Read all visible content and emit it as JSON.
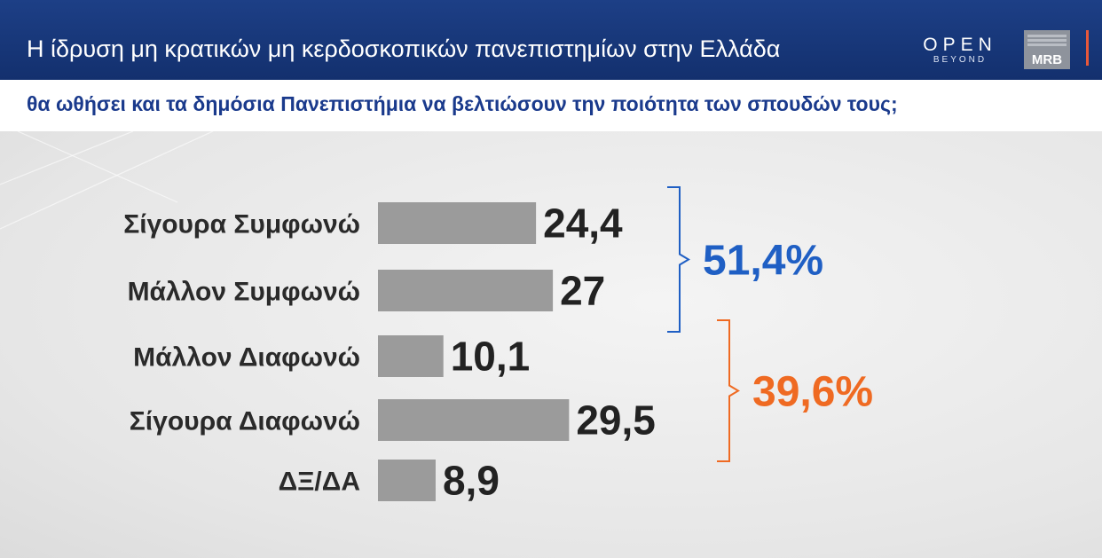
{
  "header": {
    "title": "Η ίδρυση μη κρατικών μη κερδοσκοπικών πανεπιστημίων στην Ελλάδα",
    "logo_open": "OPEN",
    "logo_open_sub": "BEYOND",
    "logo_mrb": "MRB"
  },
  "subheader": {
    "question": "θα ωθήσει και τα δημόσια Πανεπιστήμια να βελτιώσουν την ποιότητα των σπουδών τους;"
  },
  "colors": {
    "bar": "#9b9b9b",
    "agree_group": "#1f5fc4",
    "disagree_group": "#ef6a22",
    "header_bg": "#1b3a7e"
  },
  "chart_data": {
    "type": "bar",
    "orientation": "horizontal",
    "categories": [
      "Σίγουρα Συμφωνώ",
      "Μάλλον Συμφωνώ",
      "Μάλλον Διαφωνώ",
      "Σίγουρα Διαφωνώ",
      "ΔΞ/ΔΑ"
    ],
    "values": [
      24.4,
      27,
      10.1,
      29.5,
      8.9
    ],
    "value_labels": [
      "24,4",
      "27",
      "10,1",
      "29,5",
      "8,9"
    ],
    "groups": [
      {
        "label": "51,4%",
        "members": [
          0,
          1
        ],
        "color": "#1f5fc4"
      },
      {
        "label": "39,6%",
        "members": [
          2,
          3
        ],
        "color": "#ef6a22"
      }
    ],
    "title": "",
    "xlabel": "",
    "ylabel": "",
    "xlim": [
      0,
      30
    ]
  }
}
